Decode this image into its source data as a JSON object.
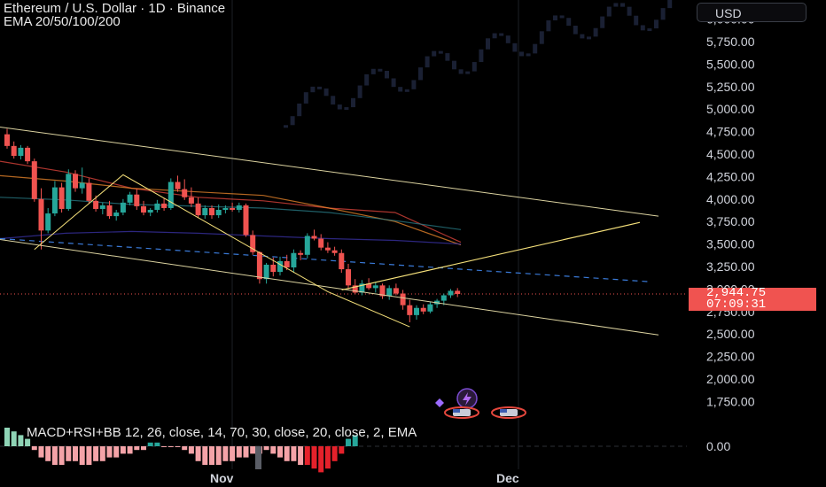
{
  "header": {
    "title": "Ethereum / U.S. Dollar · 1D · Binance",
    "indicator": "EMA 20/50/100/200"
  },
  "currency_button": "USD",
  "price_tag": {
    "price": "2,944.75",
    "countdown": "07:09:31"
  },
  "macd_label": "MACD+RSI+BB 12, 26, close, 14, 70, 30, close, 20, close, 2, EMA",
  "colors": {
    "up": "#26a69a",
    "down": "#f05350",
    "pattern": "#f5e07a",
    "channel": "#dcd3a0",
    "background": "#000000"
  },
  "chart_data": {
    "type": "candlestick",
    "title": "Ethereum / U.S. Dollar · 1D · Binance",
    "y_axis": {
      "ticks": [
        1750,
        2000,
        2250,
        2500,
        2750,
        3000,
        3250,
        3500,
        3750,
        4000,
        4250,
        4500,
        4750,
        5000,
        5250,
        5500,
        5750,
        6000
      ],
      "tick_labels": [
        "1,750.00",
        "2,000.00",
        "2,250.00",
        "2,500.00",
        "2,750.00",
        "3,000.00",
        "3,250.00",
        "3,500.00",
        "3,750.00",
        "4,000.00",
        "4,250.00",
        "4,500.00",
        "4,750.00",
        "5,000.00",
        "5,250.00",
        "5,500.00",
        "5,750.00",
        "6,000.00"
      ],
      "range": [
        1500,
        6400
      ]
    },
    "x_axis": {
      "labels": [
        "Nov",
        "Dec"
      ]
    },
    "current_price": 2944.75,
    "candles": [
      [
        4720,
        4780,
        4560,
        4590
      ],
      [
        4590,
        4640,
        4450,
        4480
      ],
      [
        4480,
        4600,
        4440,
        4570
      ],
      [
        4570,
        4590,
        4390,
        4420
      ],
      [
        4420,
        4450,
        3970,
        4000
      ],
      [
        4000,
        4120,
        3440,
        3650
      ],
      [
        3650,
        3900,
        3620,
        3840
      ],
      [
        3840,
        4200,
        3810,
        4130
      ],
      [
        4130,
        4180,
        3850,
        3890
      ],
      [
        3890,
        4330,
        3870,
        4280
      ],
      [
        4280,
        4320,
        4080,
        4120
      ],
      [
        4120,
        4350,
        4060,
        4180
      ],
      [
        4180,
        4230,
        3950,
        3980
      ],
      [
        3980,
        4040,
        3860,
        3890
      ],
      [
        3890,
        3960,
        3830,
        3930
      ],
      [
        3930,
        3980,
        3780,
        3810
      ],
      [
        3810,
        3880,
        3760,
        3850
      ],
      [
        3850,
        4000,
        3820,
        3960
      ],
      [
        3960,
        4080,
        3930,
        4050
      ],
      [
        4050,
        4110,
        3880,
        3920
      ],
      [
        3920,
        3980,
        3820,
        3850
      ],
      [
        3850,
        3900,
        3810,
        3880
      ],
      [
        3880,
        3990,
        3850,
        3950
      ],
      [
        3950,
        4010,
        3870,
        3900
      ],
      [
        3900,
        4230,
        3880,
        4190
      ],
      [
        4190,
        4260,
        4080,
        4110
      ],
      [
        4110,
        4220,
        3990,
        4020
      ],
      [
        4020,
        4130,
        3910,
        3950
      ],
      [
        3950,
        4020,
        3790,
        3820
      ],
      [
        3820,
        3930,
        3780,
        3900
      ],
      [
        3900,
        3930,
        3780,
        3820
      ],
      [
        3820,
        3940,
        3790,
        3880
      ],
      [
        3880,
        3930,
        3840,
        3900
      ],
      [
        3900,
        3960,
        3860,
        3880
      ],
      [
        3880,
        3960,
        3850,
        3930
      ],
      [
        3930,
        3950,
        3580,
        3600
      ],
      [
        3600,
        3650,
        3380,
        3410
      ],
      [
        3410,
        3420,
        3060,
        3110
      ],
      [
        3110,
        3290,
        3060,
        3270
      ],
      [
        3270,
        3350,
        3140,
        3190
      ],
      [
        3190,
        3360,
        3150,
        3310
      ],
      [
        3310,
        3380,
        3210,
        3240
      ],
      [
        3240,
        3440,
        3180,
        3400
      ],
      [
        3400,
        3430,
        3320,
        3380
      ],
      [
        3380,
        3620,
        3340,
        3590
      ],
      [
        3590,
        3660,
        3540,
        3560
      ],
      [
        3560,
        3610,
        3430,
        3460
      ],
      [
        3460,
        3520,
        3400,
        3430
      ],
      [
        3430,
        3470,
        3370,
        3400
      ],
      [
        3400,
        3440,
        3180,
        3220
      ],
      [
        3220,
        3280,
        3000,
        3040
      ],
      [
        3040,
        3110,
        2940,
        2960
      ],
      [
        2960,
        3100,
        2930,
        3060
      ],
      [
        3060,
        3120,
        2990,
        3010
      ],
      [
        3010,
        3080,
        2960,
        3040
      ],
      [
        3040,
        3060,
        2890,
        2920
      ],
      [
        2920,
        3040,
        2880,
        3010
      ],
      [
        3010,
        3060,
        2930,
        2950
      ],
      [
        2950,
        2990,
        2770,
        2820
      ],
      [
        2820,
        2880,
        2630,
        2710
      ],
      [
        2710,
        2820,
        2660,
        2790
      ],
      [
        2790,
        2830,
        2720,
        2750
      ],
      [
        2750,
        2860,
        2730,
        2830
      ],
      [
        2830,
        2890,
        2790,
        2870
      ],
      [
        2870,
        2950,
        2820,
        2930
      ],
      [
        2930,
        3000,
        2900,
        2980
      ],
      [
        2980,
        3010,
        2910,
        2944.75
      ]
    ],
    "emas": [
      {
        "name": "EMA 20",
        "color": "#e5473d",
        "values": [
          4420,
          4300,
          4120,
          4020,
          3980,
          3900,
          3850,
          3520
        ]
      },
      {
        "name": "EMA 50",
        "color": "#f08a2c",
        "values": [
          4260,
          4200,
          4120,
          4080,
          4040,
          3900,
          3750,
          3490
        ]
      },
      {
        "name": "EMA 100",
        "color": "#2a7f8a",
        "values": [
          4020,
          3990,
          3940,
          3920,
          3900,
          3850,
          3760,
          3660
        ]
      },
      {
        "name": "EMA 200",
        "color": "#3b33a8",
        "values": [
          3560,
          3620,
          3640,
          3620,
          3590,
          3560,
          3540,
          3500
        ]
      }
    ],
    "channel": {
      "upper": [
        [
          0,
          4800
        ],
        [
          66,
          3810
        ]
      ],
      "lower": [
        [
          0,
          3550
        ],
        [
          66,
          2490
        ]
      ]
    },
    "pattern": [
      [
        4,
        3440
      ],
      [
        17,
        4270
      ],
      [
        47,
        2970
      ],
      [
        59,
        2580
      ]
    ],
    "projection": [
      [
        48,
        2990
      ],
      [
        62,
        3740
      ]
    ],
    "macd_histogram": [
      5,
      4,
      3,
      2,
      -1,
      -3,
      -4,
      -5,
      -5,
      -4,
      -4,
      -5,
      -5,
      -4,
      -4,
      -3,
      -3,
      -2,
      -2,
      -1,
      -1,
      1,
      1,
      0,
      0,
      0,
      -1,
      -2,
      -4,
      -5,
      -5,
      -5,
      -4,
      -4,
      -3,
      -3,
      -2,
      -2,
      -1,
      -2,
      -3,
      -4,
      -4,
      -5,
      -5,
      -6,
      -7,
      -6,
      -4,
      -2,
      2,
      3
    ],
    "macd_zero_label": "0.00"
  }
}
